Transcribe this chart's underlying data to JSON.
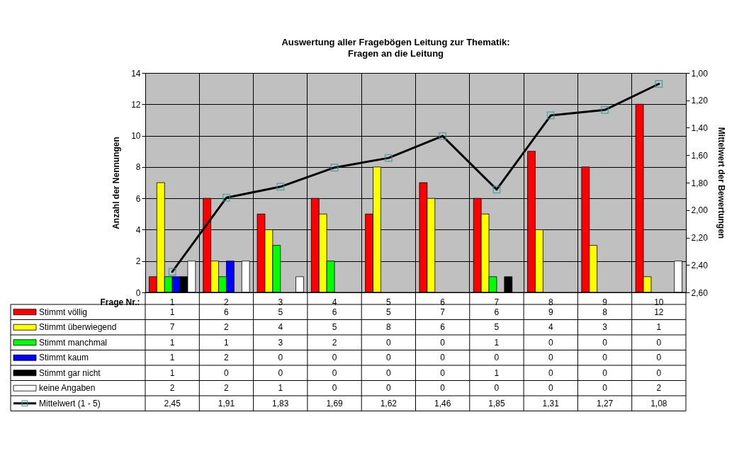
{
  "chart_data": {
    "type": "bar",
    "title": "Auswertung aller Fragebögen Leitung zur Thematik:\nFragen an die Leitung",
    "xlabel": "Frage Nr.:",
    "ylabel": "Anzahl der Nennungen",
    "y2label": "Mittelwert der Bewertungen",
    "categories": [
      "1",
      "2",
      "3",
      "4",
      "5",
      "6",
      "7",
      "8",
      "9",
      "10"
    ],
    "series": [
      {
        "name": "Stimmt völlig",
        "color": "#ff0000",
        "values": [
          1,
          6,
          5,
          6,
          5,
          7,
          6,
          9,
          8,
          12
        ]
      },
      {
        "name": "Stimmt überwiegend",
        "color": "#ffff00",
        "values": [
          7,
          2,
          4,
          5,
          8,
          6,
          5,
          4,
          3,
          1
        ]
      },
      {
        "name": "Stimmt manchmal",
        "color": "#00ff00",
        "values": [
          1,
          1,
          3,
          2,
          0,
          0,
          1,
          0,
          0,
          0
        ]
      },
      {
        "name": "Stimmt kaum",
        "color": "#0000ff",
        "values": [
          1,
          2,
          0,
          0,
          0,
          0,
          0,
          0,
          0,
          0
        ]
      },
      {
        "name": "Stimmt gar nicht",
        "color": "#000000",
        "values": [
          1,
          0,
          0,
          0,
          0,
          0,
          1,
          0,
          0,
          0
        ]
      },
      {
        "name": "keine Angaben",
        "color": "#ffffff",
        "values": [
          2,
          2,
          1,
          0,
          0,
          0,
          0,
          0,
          0,
          2
        ]
      },
      {
        "name": "Mittelwert (1 - 5)",
        "type": "line",
        "axis": "y2",
        "color": "#000000",
        "marker": "square",
        "values": [
          2.45,
          1.91,
          1.83,
          1.69,
          1.62,
          1.46,
          1.85,
          1.31,
          1.27,
          1.08
        ],
        "value_labels": [
          "2,45",
          "1,91",
          "1,83",
          "1,69",
          "1,62",
          "1,46",
          "1,85",
          "1,31",
          "1,27",
          "1,08"
        ]
      }
    ],
    "ylim": [
      0,
      14
    ],
    "yticks": [
      0,
      2,
      4,
      6,
      8,
      10,
      12,
      14
    ],
    "y2lim": [
      2.6,
      1.0
    ],
    "y2ticks": [
      {
        "value": 1.0,
        "label": "1,00"
      },
      {
        "value": 1.2,
        "label": "1,20"
      },
      {
        "value": 1.4,
        "label": "1,40"
      },
      {
        "value": 1.6,
        "label": "1,60"
      },
      {
        "value": 1.8,
        "label": "1,80"
      },
      {
        "value": 2.0,
        "label": "2,00"
      },
      {
        "value": 2.2,
        "label": "2,20"
      },
      {
        "value": 2.4,
        "label": "2,40"
      },
      {
        "value": 2.6,
        "label": "2,60"
      }
    ],
    "grid": true,
    "legend": "bottom",
    "data_labels": true
  }
}
